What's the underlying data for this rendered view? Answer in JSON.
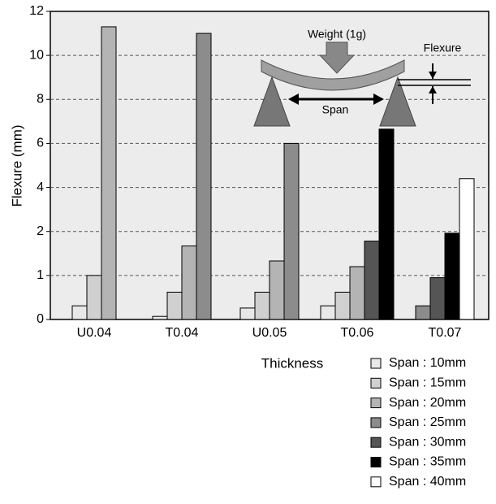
{
  "chart_data": {
    "type": "bar",
    "x_label": "Thickness",
    "y_label": "Flexure (mm)",
    "categories": [
      "U0.04",
      "T0.04",
      "U0.05",
      "T0.06",
      "T0.07"
    ],
    "series": [
      {
        "name": "Span : 10mm",
        "color": "#e8e8e8",
        "values": [
          0.31,
          0.07,
          0.26,
          0.31,
          null
        ]
      },
      {
        "name": "Span : 15mm",
        "color": "#d0d0d0",
        "values": [
          1.0,
          0.62,
          0.62,
          0.62,
          null
        ]
      },
      {
        "name": "Span : 20mm",
        "color": "#b4b4b4",
        "values": [
          11.3,
          1.67,
          1.33,
          1.2,
          null
        ]
      },
      {
        "name": "Span : 25mm",
        "color": "#8c8c8c",
        "values": [
          null,
          11.0,
          6.0,
          null,
          0.31
        ]
      },
      {
        "name": "Span : 30mm",
        "color": "#555555",
        "values": [
          null,
          null,
          null,
          1.78,
          0.95
        ]
      },
      {
        "name": "Span : 35mm",
        "color": "#000000",
        "values": [
          null,
          null,
          null,
          6.65,
          1.96
        ]
      },
      {
        "name": "Span : 40mm",
        "color": "#ffffff",
        "values": [
          null,
          null,
          null,
          null,
          4.4
        ]
      }
    ],
    "ylim": [
      0,
      12
    ],
    "yticks": [
      0,
      1,
      2,
      4,
      6,
      8,
      10,
      12
    ],
    "grid": true,
    "annotations": [
      "Weight (1g)",
      "Flexure",
      "Span"
    ]
  }
}
